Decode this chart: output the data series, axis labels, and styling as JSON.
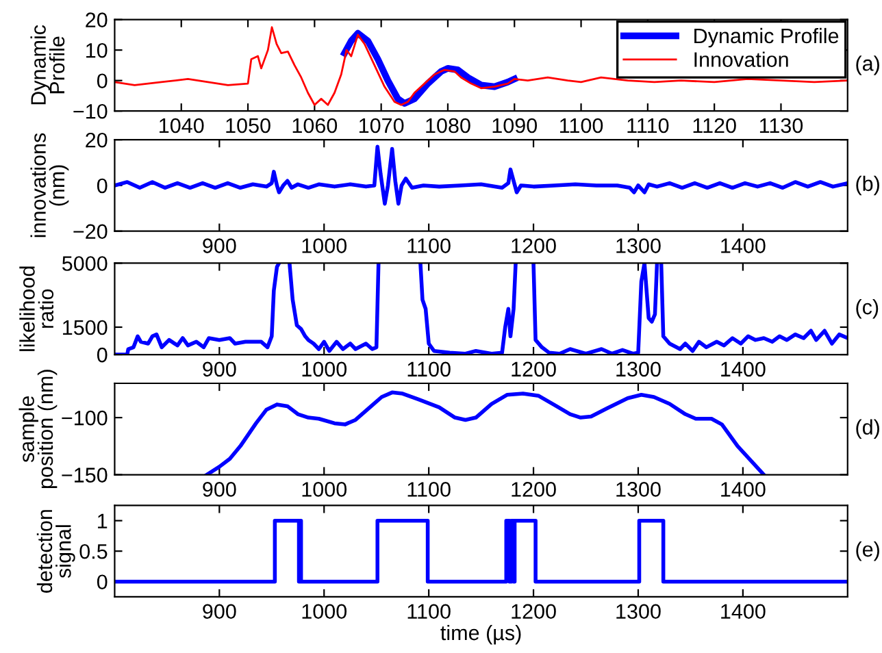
{
  "chart_data": [
    {
      "type": "line",
      "ylabel": "Dynamic\nProfile",
      "annotations": [
        "(a)"
      ],
      "legend": "top right",
      "xlim": [
        1030,
        1140
      ],
      "xticks": [
        1040,
        1050,
        1060,
        1070,
        1080,
        1090,
        1100,
        1110,
        1120,
        1130
      ],
      "ylim": [
        -10,
        20
      ],
      "yticks": [
        -10,
        0,
        10,
        20
      ],
      "series": [
        {
          "name": "Dynamic Profile",
          "color": "#0000ff",
          "x": [
            1064.5,
            1065.5,
            1066.5,
            1068,
            1069.5,
            1071,
            1072.5,
            1073.5,
            1075,
            1077,
            1079,
            1080,
            1081.5,
            1083,
            1085,
            1087,
            1089,
            1090
          ],
          "values": [
            9,
            13,
            15.5,
            13,
            7,
            0,
            -6,
            -7.5,
            -6,
            -1,
            3,
            4,
            3.5,
            1,
            -1.5,
            -2,
            -0.5,
            0.5
          ]
        },
        {
          "name": "Innovation",
          "color": "#ff0000",
          "x": [
            1030,
            1033,
            1037,
            1041,
            1044,
            1047,
            1050,
            1050.5,
            1051.5,
            1052,
            1053,
            1053.6,
            1054.3,
            1055,
            1056,
            1057,
            1058,
            1059,
            1060,
            1061,
            1062,
            1063,
            1064,
            1064.8,
            1065.5,
            1066.5,
            1067.5,
            1069,
            1070.5,
            1072,
            1073,
            1074,
            1075,
            1076.5,
            1078,
            1079.5,
            1081,
            1082,
            1083.5,
            1085,
            1087,
            1089,
            1090,
            1092,
            1095,
            1098,
            1100,
            1103,
            1107,
            1111,
            1115,
            1120,
            1125,
            1130,
            1135,
            1140
          ],
          "values": [
            -0.5,
            -1.5,
            -0.5,
            0.5,
            -0.5,
            -1.5,
            -1,
            7,
            8,
            4,
            10,
            17.5,
            12,
            9,
            9.5,
            5,
            1,
            -4,
            -8,
            -6,
            -8,
            -4,
            2,
            10,
            8,
            15,
            12,
            5,
            -2,
            -7,
            -8,
            -7,
            -4,
            -1,
            2,
            3.5,
            3,
            1,
            -1,
            -2.5,
            -2,
            -1,
            0.5,
            0,
            1,
            0,
            -0.5,
            1,
            0,
            -0.5,
            0,
            -0.5,
            0.5,
            0,
            -0.5,
            0
          ]
        }
      ]
    },
    {
      "type": "line",
      "ylabel": "innovations\n(nm)",
      "annotations": [
        "(b)"
      ],
      "xlim": [
        800,
        1500
      ],
      "xticks": [
        900,
        1000,
        1100,
        1200,
        1300,
        1400
      ],
      "ylim": [
        -20,
        20
      ],
      "yticks": [
        -20,
        0,
        20
      ],
      "series": [
        {
          "color": "#0000ff",
          "x": [
            800,
            812,
            824,
            836,
            848,
            860,
            872,
            884,
            896,
            908,
            920,
            932,
            945,
            950,
            952,
            955,
            957,
            961,
            965,
            969,
            975,
            985,
            995,
            1010,
            1025,
            1040,
            1048,
            1051,
            1054,
            1058,
            1061,
            1065,
            1068,
            1071,
            1074,
            1078,
            1084,
            1095,
            1110,
            1130,
            1150,
            1170,
            1176,
            1178,
            1181,
            1184,
            1188,
            1200,
            1220,
            1240,
            1260,
            1280,
            1292,
            1296,
            1300,
            1306,
            1310,
            1318,
            1330,
            1342,
            1354,
            1366,
            1378,
            1390,
            1402,
            1414,
            1426,
            1438,
            1450,
            1462,
            1474,
            1486,
            1500
          ],
          "values": [
            0,
            1.5,
            -1,
            1.5,
            -1,
            1,
            -1,
            1,
            -1,
            1,
            -1,
            0.5,
            -0.5,
            1,
            6,
            0,
            -3,
            0,
            2,
            -1,
            0.5,
            -1,
            0.5,
            -0.5,
            0.5,
            -0.5,
            0,
            17,
            5,
            -8,
            0,
            16,
            2,
            -8,
            0,
            3,
            -1,
            0,
            -0.5,
            0,
            0.5,
            -1,
            1,
            7,
            2,
            -3,
            0,
            -0.5,
            0,
            0.5,
            0,
            0,
            -1,
            -3,
            0,
            -3,
            0.5,
            -0.5,
            1,
            -1,
            1,
            -1,
            1,
            -1,
            1,
            -0.5,
            1,
            -1,
            1.5,
            -0.5,
            1.5,
            -0.5,
            1
          ]
        }
      ]
    },
    {
      "type": "line",
      "ylabel": "likelihood\nratio",
      "annotations": [
        "(c)"
      ],
      "xlim": [
        800,
        1500
      ],
      "xticks": [
        900,
        1000,
        1100,
        1200,
        1300,
        1400
      ],
      "ylim": [
        0,
        5000
      ],
      "yticks": [
        0,
        1500,
        5000
      ],
      "series": [
        {
          "color": "#0000ff",
          "x": [
            800,
            812,
            813,
            818,
            822,
            825,
            832,
            836,
            840,
            845,
            852,
            860,
            865,
            870,
            878,
            885,
            890,
            900,
            910,
            915,
            925,
            940,
            946,
            950,
            952,
            955,
            957,
            960,
            967,
            970,
            974,
            978,
            982,
            985,
            990,
            995,
            1000,
            1005,
            1012,
            1018,
            1025,
            1030,
            1040,
            1046,
            1050,
            1052,
            1070,
            1092,
            1094,
            1097,
            1100,
            1105,
            1120,
            1135,
            1145,
            1160,
            1170,
            1173,
            1176,
            1178,
            1181,
            1183,
            1190,
            1200,
            1202,
            1208,
            1215,
            1225,
            1235,
            1250,
            1265,
            1275,
            1285,
            1295,
            1300,
            1303,
            1306,
            1310,
            1313,
            1316,
            1318,
            1320,
            1322,
            1324,
            1330,
            1340,
            1345,
            1352,
            1358,
            1365,
            1375,
            1382,
            1390,
            1398,
            1405,
            1412,
            1420,
            1428,
            1435,
            1442,
            1450,
            1458,
            1465,
            1470,
            1478,
            1485,
            1492,
            1500
          ],
          "values": [
            0,
            0,
            300,
            400,
            1000,
            700,
            600,
            1000,
            1100,
            400,
            800,
            500,
            900,
            500,
            700,
            400,
            900,
            800,
            900,
            600,
            700,
            700,
            400,
            1000,
            3500,
            4800,
            5000,
            null,
            5000,
            3000,
            1600,
            1400,
            1000,
            800,
            600,
            300,
            700,
            200,
            700,
            300,
            600,
            300,
            600,
            300,
            400,
            5000,
            null,
            5000,
            3000,
            2500,
            600,
            200,
            100,
            50,
            200,
            50,
            100,
            1500,
            2500,
            1000,
            2500,
            5000,
            null,
            5000,
            800,
            400,
            100,
            50,
            300,
            50,
            300,
            50,
            250,
            50,
            100,
            4000,
            5000,
            2000,
            1800,
            2200,
            5000,
            null,
            5000,
            1000,
            600,
            300,
            600,
            200,
            700,
            400,
            700,
            500,
            900,
            600,
            1000,
            800,
            900,
            700,
            1000,
            800,
            1100,
            900,
            1300,
            800,
            1300,
            600,
            1100,
            900
          ]
        }
      ]
    },
    {
      "type": "line",
      "ylabel": "sample\nposition (nm)",
      "annotations": [
        "(d)"
      ],
      "xlim": [
        800,
        1500
      ],
      "xticks": [
        900,
        1000,
        1100,
        1200,
        1300,
        1400
      ],
      "ylim": [
        -150,
        -70
      ],
      "yticks": [
        -150,
        -100
      ],
      "series": [
        {
          "color": "#0000ff",
          "x": [
            888,
            900,
            910,
            920,
            935,
            945,
            955,
            965,
            975,
            985,
            995,
            1010,
            1020,
            1030,
            1045,
            1055,
            1065,
            1075,
            1090,
            1110,
            1125,
            1135,
            1145,
            1160,
            1175,
            1190,
            1205,
            1220,
            1235,
            1245,
            1255,
            1270,
            1290,
            1303,
            1315,
            1330,
            1345,
            1355,
            1370,
            1380,
            1395,
            1410,
            1420
          ],
          "values": [
            -150,
            -143,
            -136,
            -125,
            -105,
            -93,
            -88.5,
            -90,
            -97,
            -100,
            -101,
            -105,
            -106,
            -102,
            -90,
            -82,
            -78,
            -79,
            -84,
            -91,
            -100,
            -102,
            -100,
            -88,
            -80,
            -79,
            -81,
            -89,
            -97,
            -100,
            -99,
            -92,
            -83,
            -80,
            -82,
            -88,
            -97,
            -101,
            -101,
            -106,
            -125,
            -140,
            -150
          ]
        }
      ]
    },
    {
      "type": "step",
      "ylabel": "detection\nsignal",
      "xlabel": "time (µs)",
      "annotations": [
        "(e)"
      ],
      "xlim": [
        800,
        1500
      ],
      "xticks": [
        900,
        1000,
        1100,
        1200,
        1300,
        1400
      ],
      "ylim": [
        -0.25,
        1.25
      ],
      "yticks": [
        0,
        0.5,
        1
      ],
      "series": [
        {
          "color": "#0000ff",
          "x": [
            800,
            953,
            976,
            977,
            978,
            1051,
            1099,
            1174,
            1177,
            1179,
            1181,
            1182,
            1202,
            1301,
            1324,
            1500
          ],
          "values": [
            0,
            1,
            0,
            1,
            0,
            1,
            0,
            1,
            0,
            1,
            0,
            1,
            0,
            1,
            0,
            0
          ]
        }
      ]
    }
  ]
}
